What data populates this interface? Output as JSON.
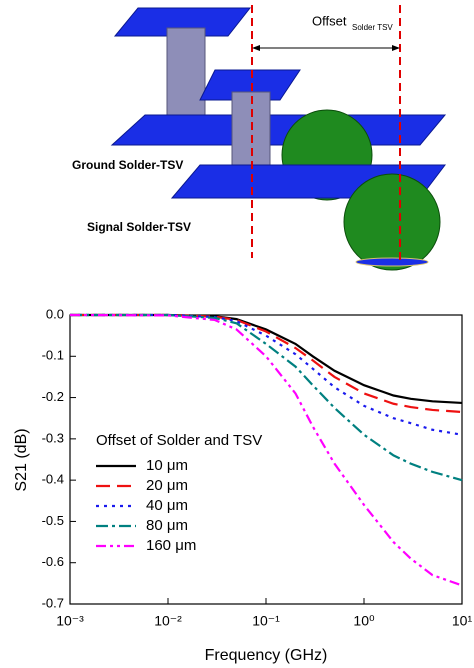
{
  "diagram": {
    "offset_label": "Offset",
    "offset_subscript": "Solder TSV",
    "ground_label": "Ground Solder-TSV",
    "signal_label": "Signal Solder-TSV"
  },
  "chart_data": {
    "type": "line",
    "xlabel": "Frequency (GHz)",
    "ylabel": "S21 (dB)",
    "xscale": "log",
    "xlim": [
      0.001,
      10
    ],
    "ylim": [
      -0.7,
      0
    ],
    "xticks": [
      {
        "value": 0.001,
        "label": "10⁻³"
      },
      {
        "value": 0.01,
        "label": "10⁻²"
      },
      {
        "value": 0.1,
        "label": "10⁻¹"
      },
      {
        "value": 1,
        "label": "10⁰"
      },
      {
        "value": 10,
        "label": "10¹"
      }
    ],
    "yticks": [
      {
        "value": 0,
        "label": "0.0"
      },
      -0.1,
      -0.2,
      -0.3,
      -0.4,
      -0.5,
      -0.6,
      -0.7
    ],
    "grid": false,
    "legend": "left",
    "legend_title": "Offset of Solder and TSV",
    "x": [
      0.001,
      0.01,
      0.03,
      0.05,
      0.1,
      0.2,
      0.3,
      0.5,
      1,
      2,
      3,
      5,
      10
    ],
    "series": [
      {
        "name": "10 μm",
        "color": "#000000",
        "dash": "solid",
        "values": [
          0,
          0,
          -0.003,
          -0.01,
          -0.035,
          -0.07,
          -0.1,
          -0.135,
          -0.17,
          -0.195,
          -0.203,
          -0.209,
          -0.213
        ]
      },
      {
        "name": "20 μm",
        "color": "#ee1111",
        "dash": "dash",
        "values": [
          0,
          0,
          -0.004,
          -0.012,
          -0.04,
          -0.08,
          -0.11,
          -0.15,
          -0.19,
          -0.215,
          -0.223,
          -0.23,
          -0.235
        ]
      },
      {
        "name": "40 μm",
        "color": "#1a1aee",
        "dash": "dot",
        "values": [
          0,
          0,
          -0.005,
          -0.015,
          -0.05,
          -0.095,
          -0.13,
          -0.175,
          -0.22,
          -0.25,
          -0.262,
          -0.278,
          -0.29
        ]
      },
      {
        "name": "80 μm",
        "color": "#008080",
        "dash": "dashdot",
        "values": [
          0,
          0,
          -0.007,
          -0.02,
          -0.07,
          -0.125,
          -0.17,
          -0.225,
          -0.29,
          -0.34,
          -0.36,
          -0.38,
          -0.4
        ]
      },
      {
        "name": "160 μm",
        "color": "#ff00ff",
        "dash": "dashdotdot",
        "values": [
          0,
          -0.001,
          -0.012,
          -0.035,
          -0.1,
          -0.19,
          -0.27,
          -0.36,
          -0.46,
          -0.55,
          -0.59,
          -0.63,
          -0.655
        ]
      }
    ]
  }
}
